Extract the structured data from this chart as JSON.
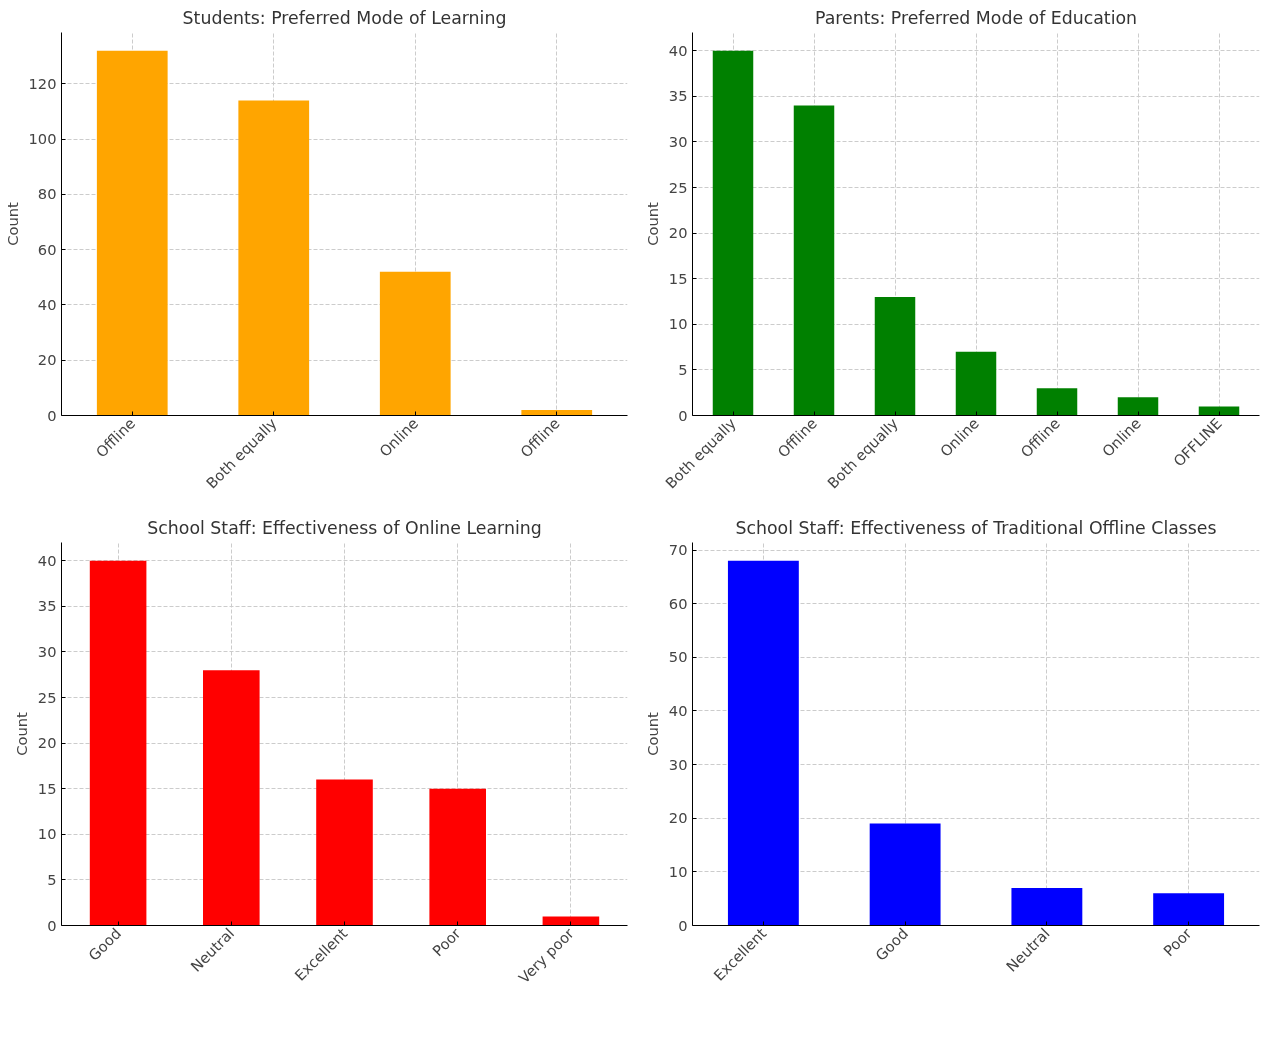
{
  "chart_data": [
    {
      "type": "bar",
      "title": "Students: Preferred Mode of Learning",
      "ylabel": "Count",
      "categories": [
        "Offline",
        "Both equally",
        "Online",
        "Offline"
      ],
      "values": [
        132,
        114,
        52,
        2
      ],
      "color": "#ffa500",
      "ylim": [
        0,
        138.6
      ],
      "yticks": [
        0,
        20,
        40,
        60,
        80,
        100,
        120
      ],
      "grid": true
    },
    {
      "type": "bar",
      "title": "Parents: Preferred Mode of Education",
      "ylabel": "Count",
      "categories": [
        "Both equally",
        "Offline",
        "Both equally",
        "Online",
        "Offline",
        "Online",
        "OFFLINE"
      ],
      "values": [
        40,
        34,
        13,
        7,
        3,
        2,
        1
      ],
      "color": "#008000",
      "ylim": [
        0,
        42
      ],
      "yticks": [
        0,
        5,
        10,
        15,
        20,
        25,
        30,
        35,
        40
      ],
      "grid": true
    },
    {
      "type": "bar",
      "title": "School Staff: Effectiveness of Online Learning",
      "ylabel": "Count",
      "categories": [
        "Good",
        "Neutral",
        "Excellent",
        "Poor",
        "Very poor"
      ],
      "values": [
        40,
        28,
        16,
        15,
        1
      ],
      "color": "#ff0000",
      "ylim": [
        0,
        42
      ],
      "yticks": [
        0,
        5,
        10,
        15,
        20,
        25,
        30,
        35,
        40
      ],
      "grid": true
    },
    {
      "type": "bar",
      "title": "School Staff: Effectiveness of Traditional Offline Classes",
      "ylabel": "Count",
      "categories": [
        "Excellent",
        "Good",
        "Neutral",
        "Poor"
      ],
      "values": [
        68,
        19,
        7,
        6
      ],
      "color": "#0000ff",
      "ylim": [
        0,
        71.4
      ],
      "yticks": [
        0,
        10,
        20,
        30,
        40,
        50,
        60,
        70
      ],
      "grid": true
    }
  ]
}
